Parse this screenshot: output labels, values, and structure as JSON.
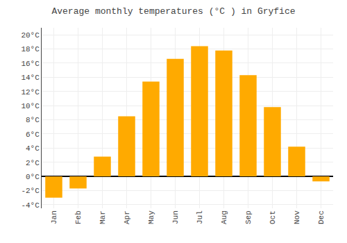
{
  "chart_data": {
    "type": "bar",
    "title": "Average monthly temperatures (°C ) in Gryfice",
    "categories": [
      "Jan",
      "Feb",
      "Mar",
      "Apr",
      "May",
      "Jun",
      "Jul",
      "Aug",
      "Sep",
      "Oct",
      "Nov",
      "Dec"
    ],
    "values": [
      -3.0,
      -1.7,
      2.8,
      8.5,
      13.4,
      16.6,
      18.4,
      17.8,
      14.3,
      9.8,
      4.2,
      -0.7
    ],
    "color": "#FFAA00",
    "ylim": [
      -4.5,
      21
    ],
    "yticks": [
      {
        "value": -4,
        "label": "-4°C"
      },
      {
        "value": -2,
        "label": "-2°C"
      },
      {
        "value": 0,
        "label": "0°C"
      },
      {
        "value": 2,
        "label": "2°C"
      },
      {
        "value": 4,
        "label": "4°C"
      },
      {
        "value": 6,
        "label": "6°C"
      },
      {
        "value": 8,
        "label": "8°C"
      },
      {
        "value": 10,
        "label": "10°C"
      },
      {
        "value": 12,
        "label": "12°C"
      },
      {
        "value": 14,
        "label": "14°C"
      },
      {
        "value": 16,
        "label": "16°C"
      },
      {
        "value": 18,
        "label": "18°C"
      },
      {
        "value": 20,
        "label": "20°C"
      }
    ],
    "grid": true
  }
}
